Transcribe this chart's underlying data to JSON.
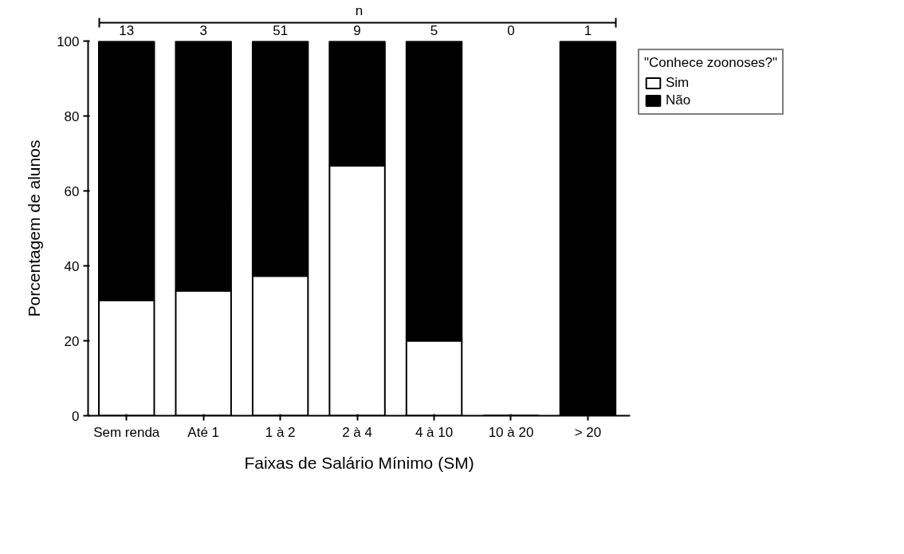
{
  "chart_data": {
    "type": "bar",
    "xlabel": "Faixas de Salário Mínimo (SM)",
    "ylabel": "Porcentagem de alunos",
    "legend_title": "\"Conhece zoonoses?\"",
    "categories": [
      "Sem renda",
      "Até 1",
      "1 à 2",
      "2 à 4",
      "4 à 10",
      "10 à 20",
      "> 20"
    ],
    "series": [
      {
        "name": "Sim",
        "color": "#ffffff",
        "values": [
          30.8,
          33.3,
          37.3,
          66.7,
          20,
          0,
          0
        ]
      },
      {
        "name": "Não",
        "color": "#000000",
        "values": [
          69.2,
          66.7,
          62.7,
          33.3,
          80,
          0,
          100
        ]
      }
    ],
    "stacked": true,
    "ylim": [
      0,
      100
    ],
    "yticks": [
      0,
      20,
      40,
      60,
      80,
      100
    ],
    "legend": "right",
    "annotations": [
      "n",
      "13",
      "3",
      "51",
      "9",
      "5",
      "0",
      "1"
    ]
  }
}
